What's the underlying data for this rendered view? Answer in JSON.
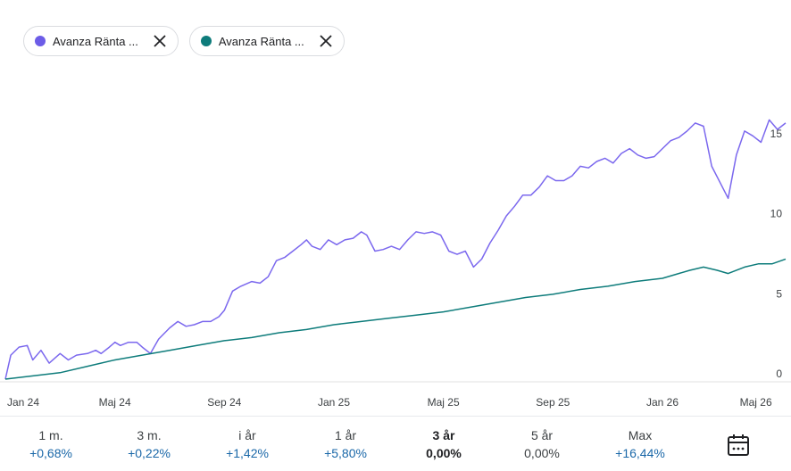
{
  "chips": [
    {
      "label": "Avanza Ränta ...",
      "color": "#6c5ce7",
      "icon": "close-icon"
    },
    {
      "label": "Avanza Ränta ...",
      "color": "#0e7c7b",
      "icon": "close-icon"
    }
  ],
  "chart_data": {
    "type": "line",
    "x_axis": {
      "ticks": [
        "Jan 24",
        "Maj 24",
        "Sep 24",
        "Jan 25",
        "Maj 25",
        "Sep 25",
        "Jan 26",
        "Maj 26"
      ]
    },
    "y_axis": {
      "ticks": [
        "0",
        "5",
        "10",
        "15"
      ],
      "range": [
        0,
        17
      ],
      "position": "right"
    },
    "x_range_months": [
      0,
      28.5
    ],
    "series": [
      {
        "color": "#7b68ee",
        "points": [
          [
            0,
            0
          ],
          [
            0.2,
            1.5
          ],
          [
            0.5,
            2.0
          ],
          [
            0.8,
            2.1
          ],
          [
            1.0,
            1.2
          ],
          [
            1.3,
            1.8
          ],
          [
            1.6,
            1.0
          ],
          [
            2.0,
            1.6
          ],
          [
            2.3,
            1.2
          ],
          [
            2.6,
            1.5
          ],
          [
            3.0,
            1.6
          ],
          [
            3.3,
            1.8
          ],
          [
            3.5,
            1.6
          ],
          [
            3.8,
            2.0
          ],
          [
            4.0,
            2.3
          ],
          [
            4.2,
            2.1
          ],
          [
            4.5,
            2.3
          ],
          [
            4.8,
            2.3
          ],
          [
            5.0,
            2.0
          ],
          [
            5.3,
            1.6
          ],
          [
            5.6,
            2.5
          ],
          [
            6.0,
            3.2
          ],
          [
            6.3,
            3.6
          ],
          [
            6.6,
            3.3
          ],
          [
            6.9,
            3.4
          ],
          [
            7.2,
            3.6
          ],
          [
            7.5,
            3.6
          ],
          [
            7.8,
            3.9
          ],
          [
            8.0,
            4.3
          ],
          [
            8.3,
            5.5
          ],
          [
            8.6,
            5.8
          ],
          [
            9.0,
            6.1
          ],
          [
            9.3,
            6.0
          ],
          [
            9.6,
            6.4
          ],
          [
            9.9,
            7.4
          ],
          [
            10.2,
            7.6
          ],
          [
            10.5,
            8.0
          ],
          [
            10.8,
            8.4
          ],
          [
            11.0,
            8.7
          ],
          [
            11.2,
            8.3
          ],
          [
            11.5,
            8.1
          ],
          [
            11.8,
            8.7
          ],
          [
            12.1,
            8.4
          ],
          [
            12.4,
            8.7
          ],
          [
            12.7,
            8.8
          ],
          [
            13.0,
            9.2
          ],
          [
            13.2,
            9.0
          ],
          [
            13.5,
            8.0
          ],
          [
            13.8,
            8.1
          ],
          [
            14.1,
            8.3
          ],
          [
            14.4,
            8.1
          ],
          [
            14.7,
            8.7
          ],
          [
            15.0,
            9.2
          ],
          [
            15.3,
            9.1
          ],
          [
            15.6,
            9.2
          ],
          [
            15.9,
            9.0
          ],
          [
            16.2,
            8.0
          ],
          [
            16.5,
            7.8
          ],
          [
            16.8,
            8.0
          ],
          [
            17.1,
            7.0
          ],
          [
            17.4,
            7.5
          ],
          [
            17.7,
            8.5
          ],
          [
            18.0,
            9.3
          ],
          [
            18.3,
            10.2
          ],
          [
            18.6,
            10.8
          ],
          [
            18.9,
            11.5
          ],
          [
            19.2,
            11.5
          ],
          [
            19.5,
            12.0
          ],
          [
            19.8,
            12.7
          ],
          [
            20.1,
            12.4
          ],
          [
            20.4,
            12.4
          ],
          [
            20.7,
            12.7
          ],
          [
            21.0,
            13.3
          ],
          [
            21.3,
            13.2
          ],
          [
            21.6,
            13.6
          ],
          [
            21.9,
            13.8
          ],
          [
            22.2,
            13.5
          ],
          [
            22.5,
            14.1
          ],
          [
            22.8,
            14.4
          ],
          [
            23.1,
            14.0
          ],
          [
            23.4,
            13.8
          ],
          [
            23.7,
            13.9
          ],
          [
            24.0,
            14.4
          ],
          [
            24.3,
            14.9
          ],
          [
            24.6,
            15.1
          ],
          [
            24.9,
            15.5
          ],
          [
            25.2,
            16.0
          ],
          [
            25.5,
            15.8
          ],
          [
            25.8,
            13.3
          ],
          [
            26.1,
            12.3
          ],
          [
            26.4,
            11.3
          ],
          [
            26.7,
            14.0
          ],
          [
            27.0,
            15.5
          ],
          [
            27.3,
            15.2
          ],
          [
            27.6,
            14.8
          ],
          [
            27.9,
            16.2
          ],
          [
            28.2,
            15.6
          ],
          [
            28.5,
            16.0
          ]
        ]
      },
      {
        "color": "#0e7c7b",
        "points": [
          [
            0,
            0
          ],
          [
            1,
            0.2
          ],
          [
            2,
            0.4
          ],
          [
            3,
            0.8
          ],
          [
            4,
            1.2
          ],
          [
            5,
            1.5
          ],
          [
            6,
            1.8
          ],
          [
            7,
            2.1
          ],
          [
            8,
            2.4
          ],
          [
            9,
            2.6
          ],
          [
            10,
            2.9
          ],
          [
            11,
            3.1
          ],
          [
            12,
            3.4
          ],
          [
            13,
            3.6
          ],
          [
            14,
            3.8
          ],
          [
            15,
            4.0
          ],
          [
            16,
            4.2
          ],
          [
            17,
            4.5
          ],
          [
            18,
            4.8
          ],
          [
            19,
            5.1
          ],
          [
            20,
            5.3
          ],
          [
            21,
            5.6
          ],
          [
            22,
            5.8
          ],
          [
            23,
            6.1
          ],
          [
            24,
            6.3
          ],
          [
            25,
            6.8
          ],
          [
            25.5,
            7.0
          ],
          [
            26,
            6.8
          ],
          [
            26.4,
            6.6
          ],
          [
            27,
            7.0
          ],
          [
            27.5,
            7.2
          ],
          [
            28,
            7.2
          ],
          [
            28.5,
            7.5
          ]
        ]
      }
    ]
  },
  "periods": [
    {
      "label": "1 m.",
      "value": "+0,68%"
    },
    {
      "label": "3 m.",
      "value": "+0,22%"
    },
    {
      "label": "i år",
      "value": "+1,42%"
    },
    {
      "label": "1 år",
      "value": "+5,80%"
    },
    {
      "label": "3 år",
      "value": "0,00%",
      "active": true
    },
    {
      "label": "5 år",
      "value": "0,00%",
      "neutral": true
    },
    {
      "label": "Max",
      "value": "+16,44%"
    }
  ],
  "calendar_icon": "calendar-icon"
}
